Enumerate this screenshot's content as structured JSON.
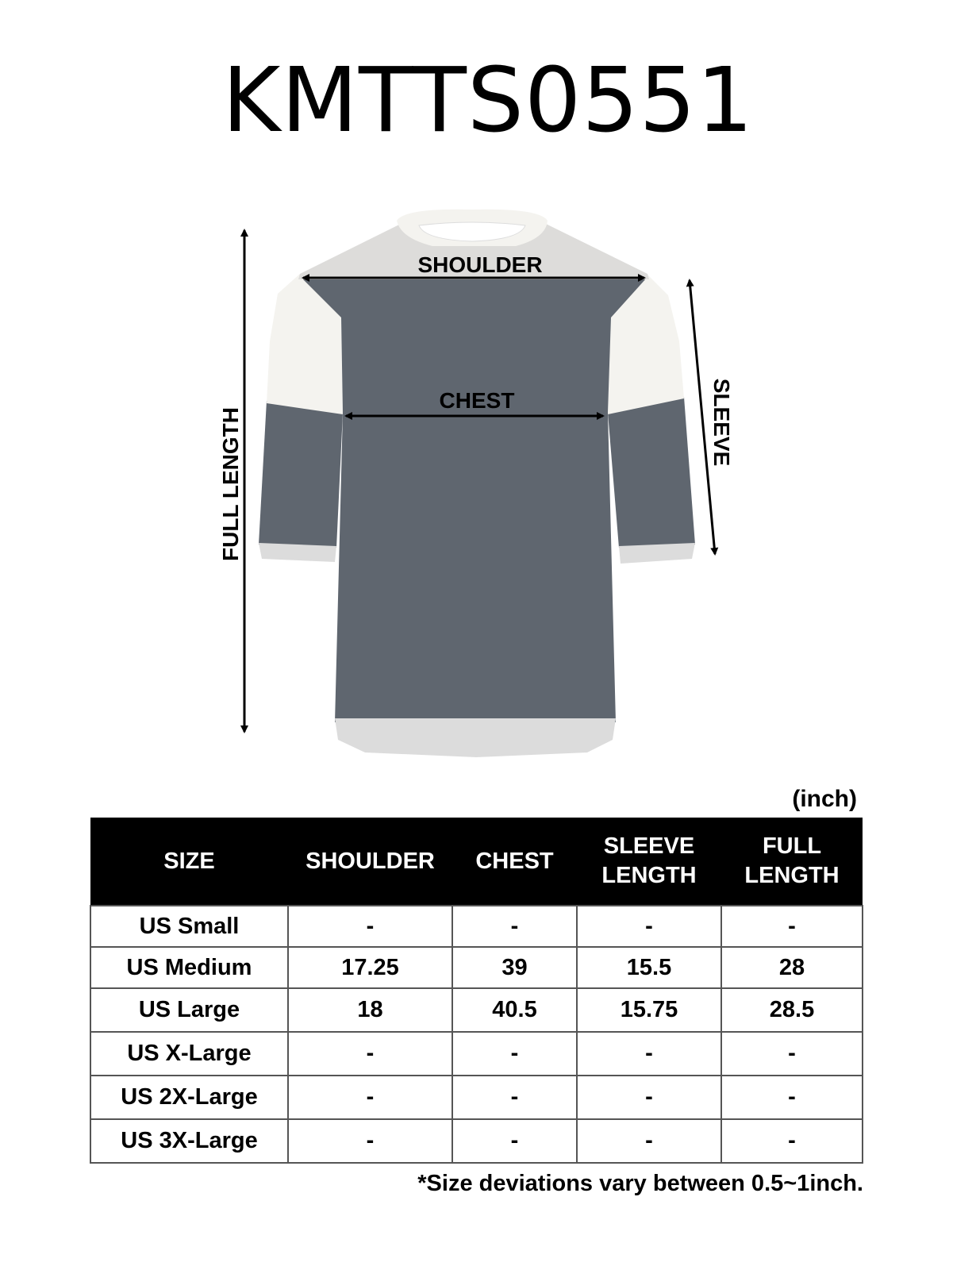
{
  "title": "KMTTS0551",
  "diagram": {
    "labels": {
      "shoulder": "SHOULDER",
      "chest": "CHEST",
      "full_length": "FULL LENGTH",
      "sleeve": "SLEEVE"
    },
    "colors": {
      "body": "#5f666f",
      "sleeve_upper": "#f4f3ef",
      "trim": "#dcdcdc",
      "arrow": "#000000"
    }
  },
  "unit": "(inch)",
  "table": {
    "headers": [
      "SIZE",
      "SHOULDER",
      "CHEST",
      "SLEEVE\nLENGTH",
      "FULL\nLENGTH"
    ],
    "header_lines": [
      [
        "SIZE"
      ],
      [
        "SHOULDER"
      ],
      [
        "CHEST"
      ],
      [
        "SLEEVE",
        "LENGTH"
      ],
      [
        "FULL",
        "LENGTH"
      ]
    ],
    "rows": [
      [
        "US Small",
        "-",
        "-",
        "-",
        "-"
      ],
      [
        "US Medium",
        "17.25",
        "39",
        "15.5",
        "28"
      ],
      [
        "US Large",
        "18",
        "40.5",
        "15.75",
        "28.5"
      ],
      [
        "US X-Large",
        "-",
        "-",
        "-",
        "-"
      ],
      [
        "US 2X-Large",
        "-",
        "-",
        "-",
        "-"
      ],
      [
        "US 3X-Large",
        "-",
        "-",
        "-",
        "-"
      ]
    ]
  },
  "note": "*Size deviations vary between 0.5~1inch."
}
